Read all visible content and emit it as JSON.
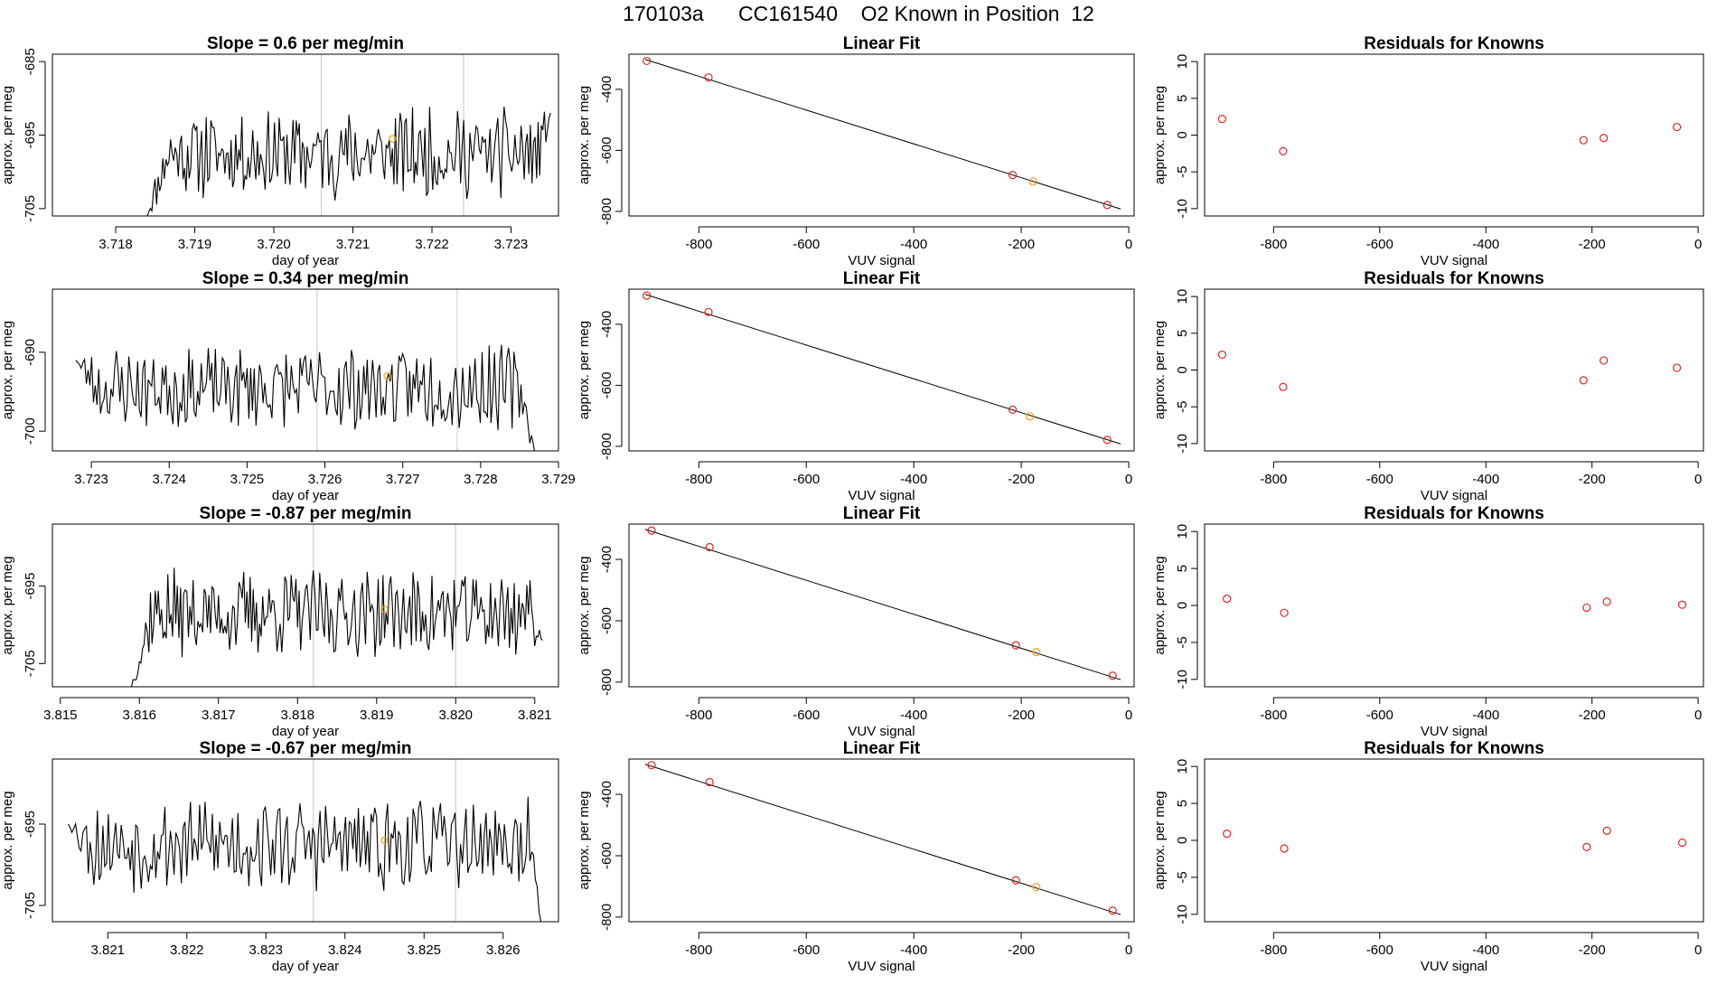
{
  "page_title": "170103a      CC161540    O2 Known in Position  12",
  "colors": {
    "trace": "#000000",
    "points": "#d62728",
    "highlight": "#f0a020",
    "vline": "#c8c8c8",
    "frame": "#000000"
  },
  "chart_data": [
    {
      "type": "line",
      "row": 0,
      "col": 0,
      "title": "Slope =  0.6  per meg/min",
      "xlabel": "day of year",
      "ylabel": "approx. per meg",
      "xlim": [
        3.7172,
        3.7236
      ],
      "ylim": [
        -706,
        -684
      ],
      "xticks": [
        "3.718",
        "3.719",
        "3.720",
        "3.721",
        "3.722",
        "3.723"
      ],
      "xtick_values": [
        3.718,
        3.719,
        3.72,
        3.721,
        3.722,
        3.723
      ],
      "yticks": [
        "-685",
        "-695",
        "-705"
      ],
      "ytick_values": [
        -685,
        -695,
        -705
      ],
      "vlines": [
        3.7206,
        3.7224
      ],
      "trace_x": [
        3.7184,
        3.7235
      ],
      "trace_start": -706,
      "trace_end_level": -692,
      "trace_mean": -697.5,
      "trace_spread": 3.2,
      "seed": 11,
      "highlight": [
        3.7215,
        -695.5
      ]
    },
    {
      "type": "scatter",
      "row": 0,
      "col": 1,
      "title": "Linear Fit",
      "xlabel": "VUV signal",
      "ylabel": "approx. per meg",
      "xlim": [
        -930,
        10
      ],
      "ylim": [
        -815,
        -285
      ],
      "xticks": [
        "-800",
        "-600",
        "-400",
        "-200",
        "0"
      ],
      "xtick_values": [
        -800,
        -600,
        -400,
        -200,
        0
      ],
      "yticks": [
        "-400",
        "-600",
        "-800"
      ],
      "ytick_values": [
        -400,
        -600,
        -800
      ],
      "points": [
        [
          -897,
          -307
        ],
        [
          -782,
          -361
        ],
        [
          -216,
          -681
        ],
        [
          -178,
          -702
        ],
        [
          -40,
          -779
        ]
      ],
      "highlight_index": 3,
      "fit_line": [
        [
          -900,
          -302
        ],
        [
          -15,
          -792
        ]
      ]
    },
    {
      "type": "scatter",
      "row": 0,
      "col": 2,
      "title": "Residuals for Knowns",
      "xlabel": "VUV signal",
      "ylabel": "approx. per meg",
      "xlim": [
        -930,
        10
      ],
      "ylim": [
        -11,
        11
      ],
      "xticks": [
        "-800",
        "-600",
        "-400",
        "-200",
        "0"
      ],
      "xtick_values": [
        -800,
        -600,
        -400,
        -200,
        0
      ],
      "yticks": [
        "10",
        "5",
        "0",
        "-5",
        "-10"
      ],
      "ytick_values": [
        10,
        5,
        0,
        -5,
        -10
      ],
      "points": [
        [
          -897,
          2.2
        ],
        [
          -782,
          -2.2
        ],
        [
          -216,
          -0.7
        ],
        [
          -178,
          -0.4
        ],
        [
          -40,
          1.1
        ]
      ]
    },
    {
      "type": "line",
      "row": 1,
      "col": 0,
      "title": "Slope =  0.34  per meg/min",
      "xlabel": "day of year",
      "ylabel": "approx. per meg",
      "xlim": [
        3.7225,
        3.729
      ],
      "ylim": [
        -702.5,
        -682
      ],
      "xticks": [
        "3.723",
        "3.724",
        "3.725",
        "3.726",
        "3.727",
        "3.728",
        "3.729"
      ],
      "xtick_values": [
        3.723,
        3.724,
        3.725,
        3.726,
        3.727,
        3.728,
        3.729
      ],
      "yticks": [
        "-690",
        "-700"
      ],
      "ytick_values": [
        -690,
        -700
      ],
      "vlines": [
        3.7259,
        3.7277
      ],
      "trace_x": [
        3.7228,
        3.7287
      ],
      "trace_start": -691,
      "trace_end_level": -703,
      "trace_mean": -694.5,
      "trace_spread": 2.8,
      "seed": 23,
      "highlight": [
        3.7268,
        -693
      ]
    },
    {
      "type": "scatter",
      "row": 1,
      "col": 1,
      "title": "Linear Fit",
      "xlabel": "VUV signal",
      "ylabel": "approx. per meg",
      "xlim": [
        -930,
        10
      ],
      "ylim": [
        -815,
        -285
      ],
      "xticks": [
        "-800",
        "-600",
        "-400",
        "-200",
        "0"
      ],
      "xtick_values": [
        -800,
        -600,
        -400,
        -200,
        0
      ],
      "yticks": [
        "-400",
        "-600",
        "-800"
      ],
      "ytick_values": [
        -400,
        -600,
        -800
      ],
      "points": [
        [
          -897,
          -306
        ],
        [
          -782,
          -360
        ],
        [
          -216,
          -680
        ],
        [
          -184,
          -702
        ],
        [
          -40,
          -779
        ]
      ],
      "highlight_index": 3,
      "fit_line": [
        [
          -900,
          -302
        ],
        [
          -15,
          -792
        ]
      ]
    },
    {
      "type": "scatter",
      "row": 1,
      "col": 2,
      "title": "Residuals for Knowns",
      "xlabel": "VUV signal",
      "ylabel": "approx. per meg",
      "xlim": [
        -930,
        10
      ],
      "ylim": [
        -11,
        11
      ],
      "xticks": [
        "-800",
        "-600",
        "-400",
        "-200",
        "0"
      ],
      "xtick_values": [
        -800,
        -600,
        -400,
        -200,
        0
      ],
      "yticks": [
        "10",
        "5",
        "0",
        "-5",
        "-10"
      ],
      "ytick_values": [
        10,
        5,
        0,
        -5,
        -10
      ],
      "points": [
        [
          -897,
          2.1
        ],
        [
          -782,
          -2.3
        ],
        [
          -216,
          -1.4
        ],
        [
          -178,
          1.3
        ],
        [
          -40,
          0.3
        ]
      ]
    },
    {
      "type": "line",
      "row": 2,
      "col": 0,
      "title": "Slope =  -0.87  per meg/min",
      "xlabel": "day of year",
      "ylabel": "approx. per meg",
      "xlim": [
        3.8149,
        3.8213
      ],
      "ylim": [
        -708,
        -687
      ],
      "xticks": [
        "3.815",
        "3.816",
        "3.817",
        "3.818",
        "3.819",
        "3.820",
        "3.821"
      ],
      "xtick_values": [
        3.815,
        3.816,
        3.817,
        3.818,
        3.819,
        3.82,
        3.821
      ],
      "yticks": [
        "-695",
        "-705"
      ],
      "ytick_values": [
        -695,
        -705
      ],
      "vlines": [
        3.8182,
        3.82
      ],
      "trace_x": [
        3.8159,
        3.8211
      ],
      "trace_start": -708,
      "trace_end_level": -702,
      "trace_mean": -698.5,
      "trace_spread": 3.0,
      "seed": 37,
      "highlight": [
        3.8191,
        -698
      ]
    },
    {
      "type": "scatter",
      "row": 2,
      "col": 1,
      "title": "Linear Fit",
      "xlabel": "VUV signal",
      "ylabel": "approx. per meg",
      "xlim": [
        -930,
        10
      ],
      "ylim": [
        -815,
        -285
      ],
      "xticks": [
        "-800",
        "-600",
        "-400",
        "-200",
        "0"
      ],
      "xtick_values": [
        -800,
        -600,
        -400,
        -200,
        0
      ],
      "yticks": [
        "-400",
        "-600",
        "-800"
      ],
      "ytick_values": [
        -400,
        -600,
        -800
      ],
      "points": [
        [
          -888,
          -306
        ],
        [
          -780,
          -360
        ],
        [
          -210,
          -680
        ],
        [
          -172,
          -702
        ],
        [
          -30,
          -779
        ]
      ],
      "highlight_index": 3,
      "fit_line": [
        [
          -900,
          -302
        ],
        [
          -15,
          -792
        ]
      ]
    },
    {
      "type": "scatter",
      "row": 2,
      "col": 2,
      "title": "Residuals for Knowns",
      "xlabel": "VUV signal",
      "ylabel": "approx. per meg",
      "xlim": [
        -930,
        10
      ],
      "ylim": [
        -11,
        11
      ],
      "xticks": [
        "-800",
        "-600",
        "-400",
        "-200",
        "0"
      ],
      "xtick_values": [
        -800,
        -600,
        -400,
        -200,
        0
      ],
      "yticks": [
        "10",
        "5",
        "0",
        "-5",
        "-10"
      ],
      "ytick_values": [
        10,
        5,
        0,
        -5,
        -10
      ],
      "points": [
        [
          -888,
          0.9
        ],
        [
          -780,
          -1.0
        ],
        [
          -210,
          -0.3
        ],
        [
          -172,
          0.5
        ],
        [
          -30,
          0.1
        ]
      ]
    },
    {
      "type": "line",
      "row": 3,
      "col": 0,
      "title": "Slope =  -0.67  per meg/min",
      "xlabel": "day of year",
      "ylabel": "approx. per meg",
      "xlim": [
        3.8203,
        3.8267
      ],
      "ylim": [
        -707,
        -687
      ],
      "xticks": [
        "3.821",
        "3.822",
        "3.823",
        "3.824",
        "3.825",
        "3.826"
      ],
      "xtick_values": [
        3.821,
        3.822,
        3.823,
        3.824,
        3.825,
        3.826
      ],
      "yticks": [
        "-695",
        "-705"
      ],
      "ytick_values": [
        -695,
        -705
      ],
      "vlines": [
        3.8236,
        3.8254
      ],
      "trace_x": [
        3.8205,
        3.8265
      ],
      "trace_start": -695,
      "trace_end_level": -708,
      "trace_mean": -697.5,
      "trace_spread": 3.0,
      "seed": 53,
      "highlight": [
        3.8245,
        -697
      ]
    },
    {
      "type": "scatter",
      "row": 3,
      "col": 1,
      "title": "Linear Fit",
      "xlabel": "VUV signal",
      "ylabel": "approx. per meg",
      "xlim": [
        -930,
        10
      ],
      "ylim": [
        -815,
        -285
      ],
      "xticks": [
        "-800",
        "-600",
        "-400",
        "-200",
        "0"
      ],
      "xtick_values": [
        -800,
        -600,
        -400,
        -200,
        0
      ],
      "yticks": [
        "-400",
        "-600",
        "-800"
      ],
      "ytick_values": [
        -400,
        -600,
        -800
      ],
      "points": [
        [
          -888,
          -305
        ],
        [
          -780,
          -360
        ],
        [
          -210,
          -680
        ],
        [
          -172,
          -702
        ],
        [
          -30,
          -779
        ]
      ],
      "highlight_index": 3,
      "fit_line": [
        [
          -900,
          -302
        ],
        [
          -15,
          -792
        ]
      ]
    },
    {
      "type": "scatter",
      "row": 3,
      "col": 2,
      "title": "Residuals for Knowns",
      "xlabel": "VUV signal",
      "ylabel": "approx. per meg",
      "xlim": [
        -930,
        10
      ],
      "ylim": [
        -11,
        11
      ],
      "xticks": [
        "-800",
        "-600",
        "-400",
        "-200",
        "0"
      ],
      "xtick_values": [
        -800,
        -600,
        -400,
        -200,
        0
      ],
      "yticks": [
        "10",
        "5",
        "0",
        "-5",
        "-10"
      ],
      "ytick_values": [
        10,
        5,
        0,
        -5,
        -10
      ],
      "points": [
        [
          -888,
          0.9
        ],
        [
          -780,
          -1.1
        ],
        [
          -210,
          -0.9
        ],
        [
          -172,
          1.3
        ],
        [
          -30,
          -0.3
        ]
      ]
    }
  ]
}
